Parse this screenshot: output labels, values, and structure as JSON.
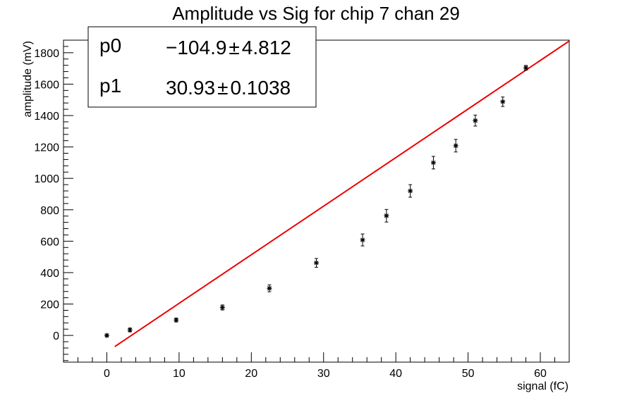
{
  "chart_data": {
    "type": "scatter",
    "title": "Amplitude vs Sig for chip 7 chan 29",
    "xlabel": "signal (fC)",
    "ylabel": "amplitude (mV)",
    "xlim": [
      -6,
      64
    ],
    "ylim": [
      -170,
      1880
    ],
    "x_ticks": [
      0,
      10,
      20,
      30,
      40,
      50,
      60
    ],
    "y_ticks": [
      0,
      200,
      400,
      600,
      800,
      1000,
      1200,
      1400,
      1600,
      1800
    ],
    "grid": false,
    "points": [
      {
        "x": 0,
        "y": 0,
        "err": 8
      },
      {
        "x": 3.2,
        "y": 35,
        "err": 12
      },
      {
        "x": 9.6,
        "y": 98,
        "err": 12
      },
      {
        "x": 16.0,
        "y": 178,
        "err": 16
      },
      {
        "x": 22.5,
        "y": 300,
        "err": 22
      },
      {
        "x": 29.0,
        "y": 462,
        "err": 28
      },
      {
        "x": 35.4,
        "y": 608,
        "err": 38
      },
      {
        "x": 38.7,
        "y": 762,
        "err": 40
      },
      {
        "x": 42.0,
        "y": 920,
        "err": 40
      },
      {
        "x": 45.2,
        "y": 1100,
        "err": 40
      },
      {
        "x": 48.3,
        "y": 1208,
        "err": 40
      },
      {
        "x": 51.0,
        "y": 1368,
        "err": 35
      },
      {
        "x": 54.8,
        "y": 1488,
        "err": 30
      },
      {
        "x": 58.0,
        "y": 1704,
        "err": 15
      }
    ],
    "fit": {
      "x_range": [
        1.1,
        64
      ],
      "p0_label": "p0",
      "p0_value": "−104.9",
      "p0_error": "4.812",
      "p1_label": "p1",
      "p1_value": "30.93",
      "p1_error": "0.1038",
      "pm_symbol": "±",
      "p0": -104.9,
      "p1": 30.93
    },
    "colors": {
      "fit_line": "#ee0000",
      "points": "#000000",
      "frame": "#000000"
    }
  }
}
